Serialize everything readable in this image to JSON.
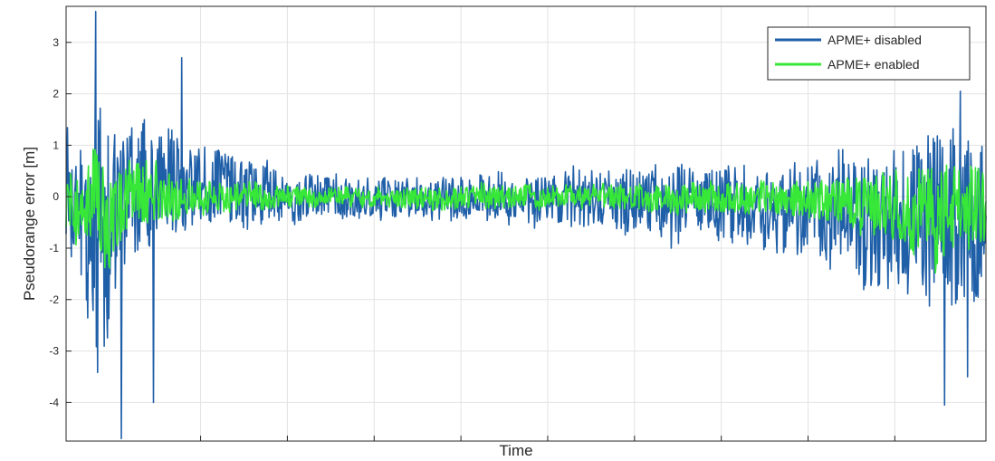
{
  "chart_data": {
    "type": "line",
    "title": "",
    "xlabel": "Time",
    "ylabel": "Pseudorange error [m]",
    "ylim": [
      -4.75,
      3.7
    ],
    "yticks": [
      3,
      2,
      1,
      0,
      -1,
      -2,
      -3,
      -4
    ],
    "xticks_labeled": false,
    "grid": true,
    "legend_position": "top-right",
    "series": [
      {
        "name": "APME+ disabled",
        "color": "#1f5fa8",
        "envelope_x": [
          0,
          0.02,
          0.03,
          0.045,
          0.055,
          0.065,
          0.075,
          0.09,
          0.11,
          0.13,
          0.16,
          0.2,
          0.23,
          0.26,
          0.3,
          0.35,
          0.4,
          0.45,
          0.5,
          0.55,
          0.6,
          0.65,
          0.7,
          0.75,
          0.8,
          0.85,
          0.88,
          0.92,
          0.95,
          0.975,
          1.0
        ],
        "envelope_upper": [
          2.3,
          1.4,
          2.7,
          2.0,
          1.8,
          1.6,
          2.0,
          2.0,
          1.8,
          1.4,
          1.2,
          1.0,
          0.7,
          0.6,
          0.6,
          0.5,
          0.5,
          0.6,
          0.6,
          0.6,
          0.7,
          0.8,
          0.9,
          0.8,
          1.0,
          1.2,
          1.4,
          1.5,
          1.9,
          1.7,
          1.5
        ],
        "envelope_lower": [
          -1.6,
          -2.3,
          -4.5,
          -4.0,
          -2.2,
          -1.8,
          -1.5,
          -1.2,
          -1.1,
          -0.9,
          -0.8,
          -0.8,
          -0.7,
          -0.6,
          -0.5,
          -0.5,
          -0.6,
          -0.6,
          -0.7,
          -0.8,
          -0.9,
          -1.0,
          -1.0,
          -1.2,
          -1.5,
          -1.8,
          -2.2,
          -2.5,
          -3.0,
          -2.5,
          -2.0
        ],
        "spikes": [
          {
            "x": 0.032,
            "y": 3.6
          },
          {
            "x": 0.06,
            "y": -4.7
          },
          {
            "x": 0.095,
            "y": -4.0
          },
          {
            "x": 0.126,
            "y": 2.7
          },
          {
            "x": 0.955,
            "y": -4.05
          },
          {
            "x": 0.972,
            "y": 2.05
          },
          {
            "x": 0.98,
            "y": -3.5
          }
        ]
      },
      {
        "name": "APME+ enabled",
        "color": "#38e838",
        "envelope_x": [
          0,
          0.02,
          0.03,
          0.045,
          0.055,
          0.065,
          0.075,
          0.09,
          0.11,
          0.13,
          0.16,
          0.2,
          0.23,
          0.26,
          0.3,
          0.35,
          0.4,
          0.45,
          0.5,
          0.55,
          0.6,
          0.65,
          0.7,
          0.75,
          0.8,
          0.85,
          0.88,
          0.92,
          0.95,
          0.975,
          1.0
        ],
        "envelope_upper": [
          0.9,
          0.5,
          1.3,
          0.9,
          0.8,
          0.8,
          1.1,
          0.9,
          0.7,
          0.5,
          0.45,
          0.35,
          0.3,
          0.25,
          0.25,
          0.25,
          0.25,
          0.3,
          0.3,
          0.3,
          0.3,
          0.35,
          0.35,
          0.35,
          0.4,
          0.5,
          0.6,
          0.8,
          1.0,
          0.9,
          0.8
        ],
        "envelope_lower": [
          -0.9,
          -1.0,
          -1.8,
          -1.7,
          -1.2,
          -1.0,
          -0.9,
          -0.7,
          -0.55,
          -0.45,
          -0.4,
          -0.35,
          -0.3,
          -0.25,
          -0.25,
          -0.25,
          -0.3,
          -0.3,
          -0.3,
          -0.3,
          -0.35,
          -0.4,
          -0.4,
          -0.45,
          -0.5,
          -0.7,
          -0.9,
          -1.2,
          -1.8,
          -1.5,
          -1.2
        ],
        "spikes": []
      }
    ]
  }
}
